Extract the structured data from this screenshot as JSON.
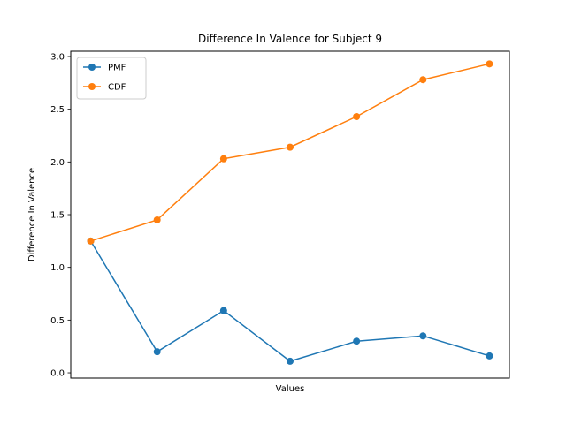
{
  "chart_data": {
    "type": "line",
    "title": "Difference In Valence for Subject 9",
    "xlabel": "Values",
    "ylabel": "Difference In Valence",
    "x": [
      0,
      1,
      2,
      3,
      4,
      5,
      6
    ],
    "xlim": [
      -0.3,
      6.3
    ],
    "ylim": [
      -0.05,
      3.05
    ],
    "yticks": [
      0.0,
      0.5,
      1.0,
      1.5,
      2.0,
      2.5,
      3.0
    ],
    "ytick_labels": [
      "0.0",
      "0.5",
      "1.0",
      "1.5",
      "2.0",
      "2.5",
      "3.0"
    ],
    "grid": false,
    "legend_position": "upper-left",
    "series": [
      {
        "name": "PMF",
        "color": "#1f77b4",
        "values": [
          1.25,
          0.2,
          0.59,
          0.11,
          0.3,
          0.35,
          0.16
        ]
      },
      {
        "name": "CDF",
        "color": "#ff7f0e",
        "values": [
          1.25,
          1.45,
          2.03,
          2.14,
          2.43,
          2.78,
          2.93
        ]
      }
    ]
  }
}
